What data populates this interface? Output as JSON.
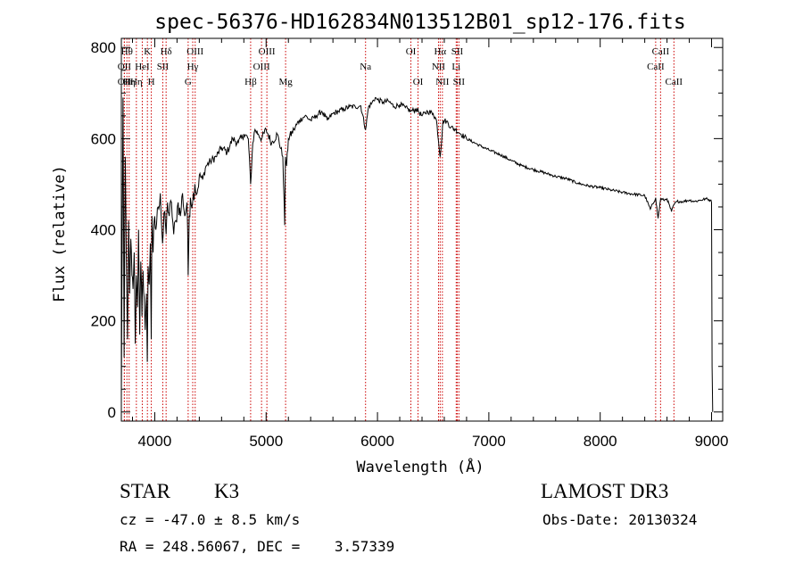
{
  "chart_data": {
    "type": "line",
    "title": "spec-56376-HD162834N013512B01_sp12-176.fits",
    "xlabel": "Wavelength (Å)",
    "ylabel": "Flux (relative)",
    "xlim": [
      3700,
      9100
    ],
    "ylim": [
      -20,
      820
    ],
    "xticks": [
      4000,
      5000,
      6000,
      7000,
      8000,
      9000
    ],
    "yticks": [
      0,
      200,
      400,
      600,
      800
    ],
    "grid": false,
    "series": [
      {
        "name": "flux",
        "x": [
          3700,
          3715,
          3725,
          3735,
          3745,
          3755,
          3765,
          3775,
          3785,
          3795,
          3805,
          3815,
          3825,
          3835,
          3845,
          3855,
          3865,
          3875,
          3885,
          3895,
          3905,
          3915,
          3925,
          3933,
          3940,
          3950,
          3960,
          3968,
          3975,
          3985,
          3995,
          4010,
          4030,
          4050,
          4070,
          4090,
          4102,
          4115,
          4130,
          4150,
          4170,
          4190,
          4210,
          4230,
          4250,
          4270,
          4290,
          4300,
          4310,
          4320,
          4340,
          4360,
          4380,
          4400,
          4430,
          4460,
          4500,
          4550,
          4600,
          4650,
          4700,
          4750,
          4800,
          4840,
          4861,
          4880,
          4900,
          4930,
          4960,
          5000,
          5050,
          5100,
          5150,
          5167,
          5173,
          5184,
          5200,
          5250,
          5300,
          5350,
          5400,
          5450,
          5500,
          5550,
          5600,
          5650,
          5700,
          5750,
          5800,
          5850,
          5893,
          5920,
          5950,
          5980,
          6000,
          6050,
          6100,
          6150,
          6200,
          6250,
          6300,
          6350,
          6400,
          6450,
          6500,
          6530,
          6563,
          6590,
          6620,
          6660,
          6700,
          6750,
          6800,
          6900,
          7000,
          7100,
          7200,
          7300,
          7400,
          7500,
          7600,
          7700,
          7800,
          7900,
          8000,
          8100,
          8200,
          8300,
          8400,
          8450,
          8498,
          8520,
          8542,
          8570,
          8600,
          8640,
          8662,
          8690,
          8750,
          8800,
          8850,
          8900,
          8950,
          8990,
          9000,
          9005,
          9010
        ],
        "values": [
          30,
          690,
          120,
          560,
          330,
          160,
          420,
          260,
          380,
          300,
          270,
          350,
          150,
          300,
          230,
          400,
          170,
          330,
          210,
          310,
          250,
          180,
          260,
          110,
          320,
          280,
          370,
          160,
          430,
          350,
          420,
          400,
          450,
          480,
          370,
          440,
          390,
          460,
          430,
          460,
          390,
          420,
          460,
          430,
          480,
          430,
          460,
          300,
          430,
          470,
          460,
          500,
          480,
          520,
          510,
          540,
          550,
          560,
          580,
          570,
          600,
          590,
          610,
          600,
          500,
          590,
          620,
          610,
          600,
          620,
          590,
          610,
          560,
          410,
          560,
          540,
          600,
          620,
          640,
          650,
          640,
          650,
          660,
          640,
          655,
          660,
          665,
          670,
          670,
          672,
          620,
          670,
          678,
          690,
          685,
          680,
          682,
          670,
          675,
          668,
          660,
          665,
          650,
          660,
          655,
          640,
          560,
          640,
          638,
          625,
          620,
          610,
          600,
          587,
          575,
          565,
          552,
          540,
          532,
          525,
          517,
          512,
          502,
          496,
          492,
          487,
          482,
          478,
          475,
          445,
          470,
          425,
          468,
          465,
          468,
          440,
          455,
          462,
          462,
          465,
          462,
          465,
          468,
          465,
          460,
          100,
          0
        ]
      }
    ],
    "lines": [
      {
        "x": 3727,
        "label": "OII",
        "row": 2
      },
      {
        "x": 3727,
        "label": "OII",
        "row": 3
      },
      {
        "x": 3750,
        "label": "Hθ",
        "row": 1
      },
      {
        "x": 3770,
        "label": "Hη",
        "row": 3
      },
      {
        "x": 3835,
        "label": "Hη",
        "row": 3
      },
      {
        "x": 3888,
        "label": "HeI",
        "row": 2
      },
      {
        "x": 3934,
        "label": "K",
        "row": 1
      },
      {
        "x": 3969,
        "label": "H",
        "row": 3
      },
      {
        "x": 4072,
        "label": "SII",
        "row": 2
      },
      {
        "x": 4102,
        "label": "Hδ",
        "row": 1
      },
      {
        "x": 4300,
        "label": "G",
        "row": 3
      },
      {
        "x": 4341,
        "label": "Hγ",
        "row": 2
      },
      {
        "x": 4363,
        "label": "OIII",
        "row": 1
      },
      {
        "x": 4861,
        "label": "Hβ",
        "row": 3
      },
      {
        "x": 4959,
        "label": "OIII",
        "row": 2
      },
      {
        "x": 5007,
        "label": "OIII",
        "row": 1
      },
      {
        "x": 5175,
        "label": "Mg",
        "row": 3
      },
      {
        "x": 5893,
        "label": "Na",
        "row": 2
      },
      {
        "x": 6300,
        "label": "OI",
        "row": 1
      },
      {
        "x": 6364,
        "label": "OI",
        "row": 3
      },
      {
        "x": 6548,
        "label": "NII",
        "row": 2
      },
      {
        "x": 6563,
        "label": "Hα",
        "row": 1
      },
      {
        "x": 6583,
        "label": "NII",
        "row": 3
      },
      {
        "x": 6707,
        "label": "Li",
        "row": 2
      },
      {
        "x": 6716,
        "label": "SII",
        "row": 1
      },
      {
        "x": 6731,
        "label": "SII",
        "row": 3
      },
      {
        "x": 8498,
        "label": "CaII",
        "row": 2
      },
      {
        "x": 8542,
        "label": "CaII",
        "row": 1
      },
      {
        "x": 8662,
        "label": "CaII",
        "row": 3
      }
    ]
  },
  "info": {
    "class": "STAR",
    "subclass": "K3",
    "survey": "LAMOST DR3",
    "cz": "cz = -47.0 ± 8.5 km/s",
    "obs_date": "Obs-Date: 20130324",
    "coords": "RA = 248.56067, DEC =    3.57339"
  },
  "colors": {
    "line": "#000000",
    "marker": "#cc0000"
  }
}
